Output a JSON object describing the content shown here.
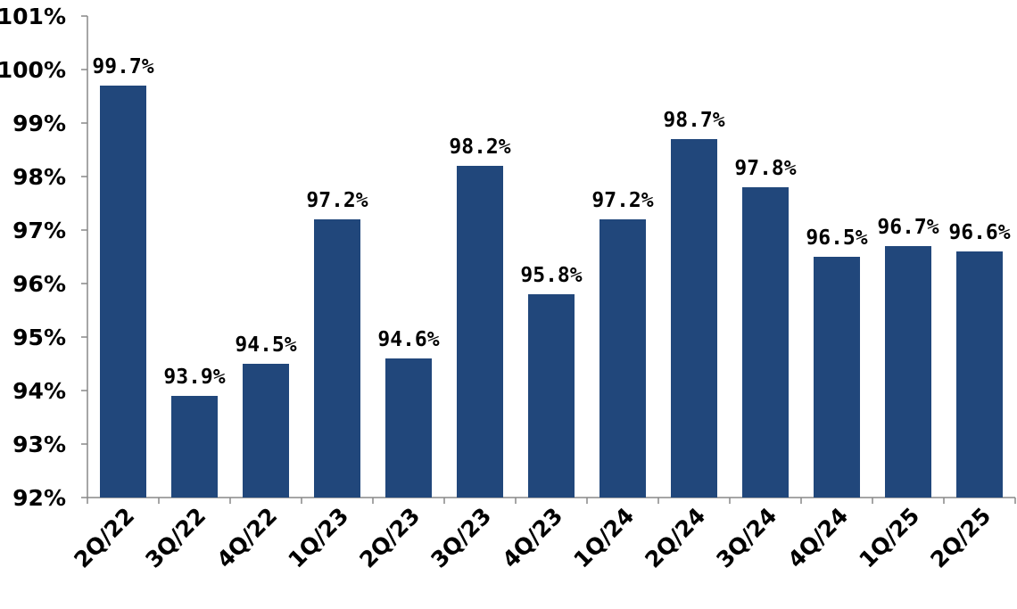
{
  "chart_data": {
    "type": "bar",
    "categories": [
      "2Q/22",
      "3Q/22",
      "4Q/22",
      "1Q/23",
      "2Q/23",
      "3Q/23",
      "4Q/23",
      "1Q/24",
      "2Q/24",
      "3Q/24",
      "4Q/24",
      "1Q/25",
      "2Q/25"
    ],
    "values": [
      99.7,
      93.9,
      94.5,
      97.2,
      94.6,
      98.2,
      95.8,
      97.2,
      98.7,
      97.8,
      96.5,
      96.7,
      96.6
    ],
    "data_labels": [
      "99.7%",
      "93.9%",
      "94.5%",
      "97.2%",
      "94.6%",
      "98.2%",
      "95.8%",
      "97.2%",
      "98.7%",
      "97.8%",
      "96.5%",
      "96.7%",
      "96.6%"
    ],
    "y_ticks": [
      92,
      93,
      94,
      95,
      96,
      97,
      98,
      99,
      100,
      101
    ],
    "y_tick_labels": [
      "92%",
      "93%",
      "94%",
      "95%",
      "96%",
      "97%",
      "98%",
      "99%",
      "100%",
      "101%"
    ],
    "ylim": [
      92,
      101
    ],
    "title": "",
    "xlabel": "",
    "ylabel": "",
    "grid": false,
    "bar_color": "#21477b",
    "axis_color": "#888888"
  }
}
